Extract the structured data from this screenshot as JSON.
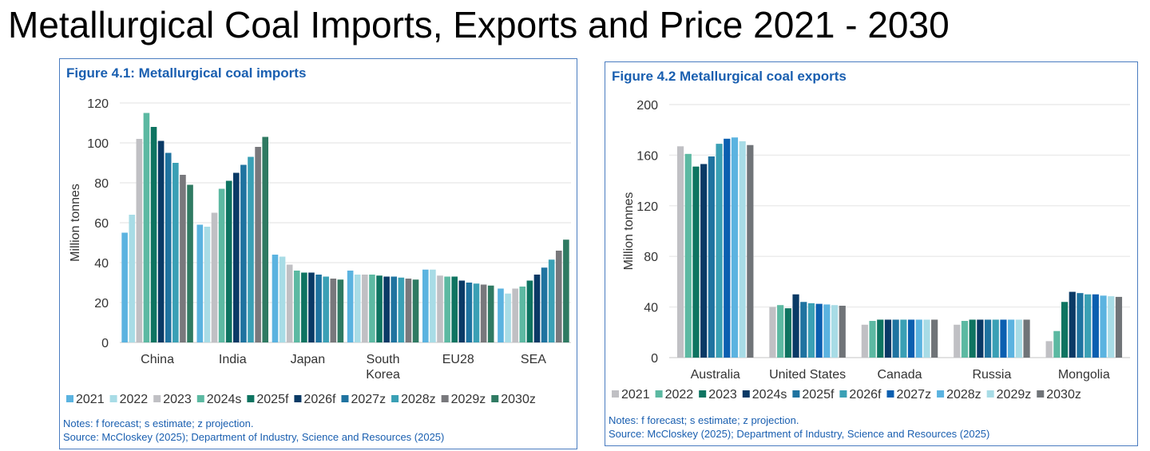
{
  "page_title": "Metallurgical Coal Imports, Exports and Price 2021 - 2030",
  "chart_data": [
    {
      "type": "bar",
      "title": "Figure 4.1: Metallurgical coal imports",
      "ylabel": "Million tonnes",
      "xlabel": "",
      "ylim": [
        0,
        120
      ],
      "yticks": [
        0,
        20,
        40,
        60,
        80,
        100,
        120
      ],
      "grid": true,
      "legend": "bottom",
      "categories": [
        "China",
        "India",
        "Japan",
        "South\nKorea",
        "EU28",
        "SEA"
      ],
      "series": [
        {
          "name": "2021",
          "color": "#5bb3e0",
          "values": [
            55,
            59,
            44,
            36,
            36.5,
            27
          ]
        },
        {
          "name": "2022",
          "color": "#a8dce6",
          "values": [
            64,
            58,
            43,
            34,
            36.5,
            24.5
          ]
        },
        {
          "name": "2023",
          "color": "#c0c0c4",
          "values": [
            102,
            65,
            39,
            34,
            33.5,
            27
          ]
        },
        {
          "name": "2024s",
          "color": "#5cb9a2",
          "values": [
            115,
            77,
            36,
            34,
            33,
            28
          ]
        },
        {
          "name": "2025f",
          "color": "#0e7461",
          "values": [
            108,
            81,
            35,
            33.5,
            33,
            31
          ]
        },
        {
          "name": "2026f",
          "color": "#0a3a66",
          "values": [
            101,
            85,
            35,
            33,
            31,
            34
          ]
        },
        {
          "name": "2027z",
          "color": "#1f73a0",
          "values": [
            95,
            89,
            34,
            33,
            30,
            37.5
          ]
        },
        {
          "name": "2028z",
          "color": "#3aa0b5",
          "values": [
            90,
            93,
            33,
            32.5,
            29.5,
            41.5
          ]
        },
        {
          "name": "2029z",
          "color": "#78787c",
          "values": [
            84,
            98,
            32,
            32,
            29,
            46
          ]
        },
        {
          "name": "2030z",
          "color": "#2f7a62",
          "values": [
            79,
            103,
            31.5,
            31.5,
            28.5,
            51.5
          ]
        }
      ],
      "notes": "Notes: f forecast; s estimate; z projection.",
      "source": "Source: McCloskey (2025); Department of Industry, Science and Resources (2025)"
    },
    {
      "type": "bar",
      "title": "Figure 4.2 Metallurgical coal exports",
      "ylabel": "Million tonnes",
      "xlabel": "",
      "ylim": [
        0,
        200
      ],
      "yticks": [
        0,
        40,
        80,
        120,
        160,
        200
      ],
      "grid": true,
      "legend": "bottom",
      "categories": [
        "Australia",
        "United States",
        "Canada",
        "Russia",
        "Mongolia"
      ],
      "series": [
        {
          "name": "2021",
          "color": "#c0c0c4",
          "values": [
            167,
            40,
            26,
            26,
            13
          ]
        },
        {
          "name": "2022",
          "color": "#5cb9a2",
          "values": [
            161,
            41.5,
            29,
            29,
            21
          ]
        },
        {
          "name": "2023",
          "color": "#0e7461",
          "values": [
            151,
            39,
            30,
            30,
            44
          ]
        },
        {
          "name": "2024s",
          "color": "#0a3a66",
          "values": [
            153,
            50,
            30,
            30,
            52
          ]
        },
        {
          "name": "2025f",
          "color": "#1f73a0",
          "values": [
            159,
            44,
            30,
            30,
            51
          ]
        },
        {
          "name": "2026f",
          "color": "#3aa0b5",
          "values": [
            169,
            43,
            30,
            30,
            50
          ]
        },
        {
          "name": "2027z",
          "color": "#0b5fb0",
          "values": [
            173,
            42.5,
            30,
            30,
            50
          ]
        },
        {
          "name": "2028z",
          "color": "#5bb3e0",
          "values": [
            174,
            42,
            30,
            30,
            49
          ]
        },
        {
          "name": "2029z",
          "color": "#a8dce6",
          "values": [
            171,
            41.5,
            30,
            30,
            48.5
          ]
        },
        {
          "name": "2030z",
          "color": "#707478",
          "values": [
            168,
            41,
            30,
            30,
            48
          ]
        }
      ],
      "notes": "Notes: f forecast; s estimate; z projection.",
      "source": "Source: McCloskey (2025); Department of Industry, Science and Resources (2025)"
    }
  ]
}
